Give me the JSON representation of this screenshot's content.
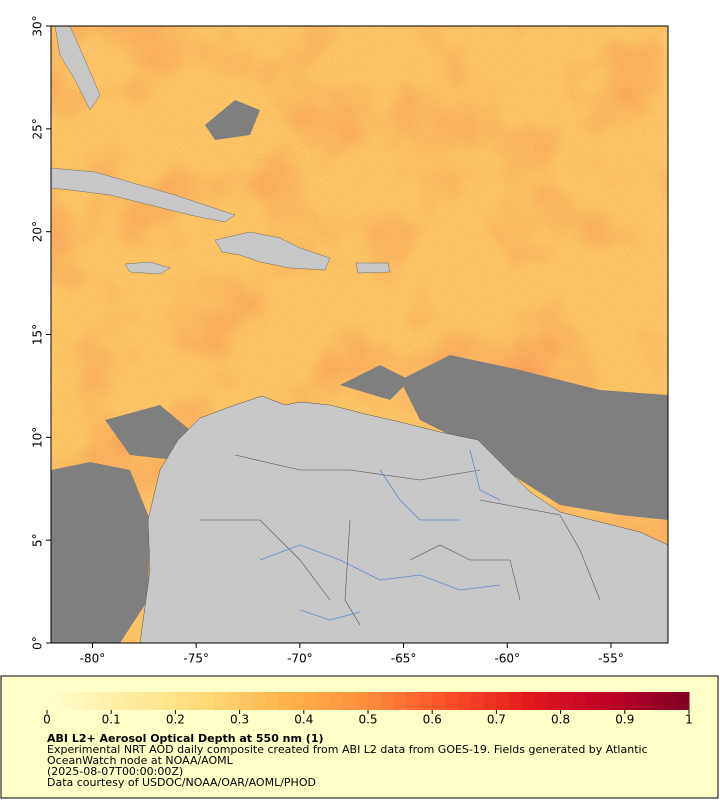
{
  "chart_data": {
    "type": "map",
    "xlim": [
      -82,
      -52.25
    ],
    "ylim": [
      0,
      30
    ],
    "xticks": [
      {
        "value": -80,
        "label": "-80°"
      },
      {
        "value": -75,
        "label": "-75°"
      },
      {
        "value": -70,
        "label": "-70°"
      },
      {
        "value": -65,
        "label": "-65°"
      },
      {
        "value": -60,
        "label": "-60°"
      },
      {
        "value": -55,
        "label": "-55°"
      }
    ],
    "yticks": [
      {
        "value": 0,
        "label": "0°"
      },
      {
        "value": 5,
        "label": "5°"
      },
      {
        "value": 10,
        "label": "10°"
      },
      {
        "value": 15,
        "label": "15°"
      },
      {
        "value": 20,
        "label": "20°"
      },
      {
        "value": 25,
        "label": "25°"
      },
      {
        "value": 30,
        "label": "30°"
      }
    ],
    "colorbar": {
      "lim": [
        0,
        1
      ],
      "ticks": [
        0,
        0.1,
        0.2,
        0.3,
        0.4,
        0.5,
        0.6,
        0.7,
        0.8,
        0.9,
        1
      ],
      "colors": [
        "#ffffcc",
        "#ffeda0",
        "#fed976",
        "#feb24c",
        "#fd8d3c",
        "#fc4e2a",
        "#e31a1c",
        "#bd0026",
        "#800026"
      ]
    },
    "title": "ABI L2+ Aerosol Optical Depth at 550 nm (1)",
    "notes": [
      "Experimental NRT AOD daily composite created from ABI L2 data from GOES-19. Fields generated by Atlantic",
      "OceanWatch node at NOAA/AOML",
      "(2025-08-07T00:00:00Z)",
      "Data courtesy of USDOC/NOAA/OAR/AOML/PHOD"
    ]
  }
}
